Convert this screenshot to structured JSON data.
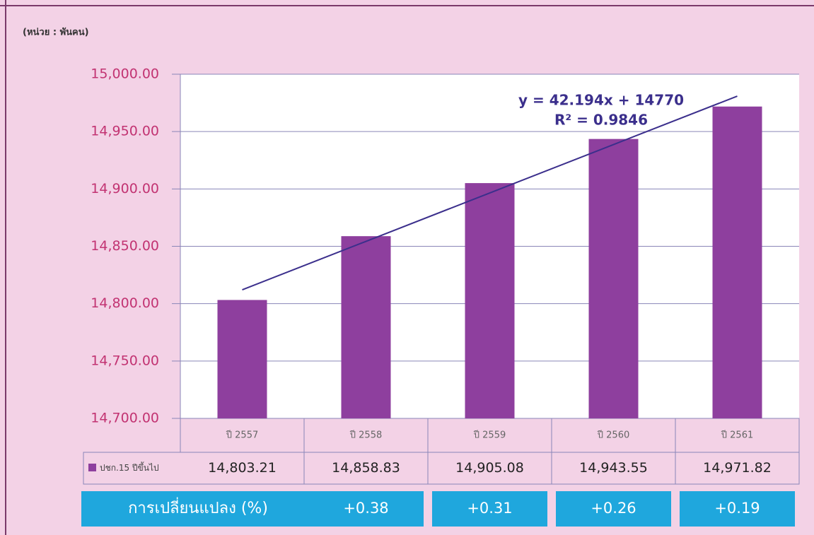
{
  "chart_data": {
    "type": "bar",
    "subtitle": "(หน่วย : พันคน)",
    "categories": [
      "ปี 2557",
      "ปี 2558",
      "ปี 2559",
      "ปี 2560",
      "ปี 2561"
    ],
    "series": [
      {
        "name": "ปชก.15 ปีขึ้นไป",
        "color": "#8e3f9e",
        "values": [
          14803.21,
          14858.83,
          14905.08,
          14943.55,
          14971.82
        ],
        "value_labels": [
          "14,803.21",
          "14,858.83",
          "14,905.08",
          "14,943.55",
          "14,971.82"
        ]
      }
    ],
    "ylim": [
      14700,
      15000
    ],
    "yticks": [
      {
        "value": 14700,
        "label": "14,700.00"
      },
      {
        "value": 14750,
        "label": "14,750.00"
      },
      {
        "value": 14800,
        "label": "14,800.00"
      },
      {
        "value": 14850,
        "label": "14,850.00"
      },
      {
        "value": 14900,
        "label": "14,900.00"
      },
      {
        "value": 14950,
        "label": "14,950.00"
      },
      {
        "value": 15000,
        "label": "15,000.00"
      }
    ],
    "grid": true,
    "trendline": {
      "equation": "y = 42.194x + 14770",
      "r_squared": "R² = 0.9846",
      "color": "#3b2f8c"
    },
    "change": {
      "label": "การเปลี่ยนแปลง (%)",
      "values": [
        0.38,
        0.31,
        0.26,
        0.19
      ],
      "value_labels": [
        "+0.38",
        "+0.31",
        "+0.26",
        "+0.19"
      ],
      "color": "#1fa7dd"
    }
  }
}
